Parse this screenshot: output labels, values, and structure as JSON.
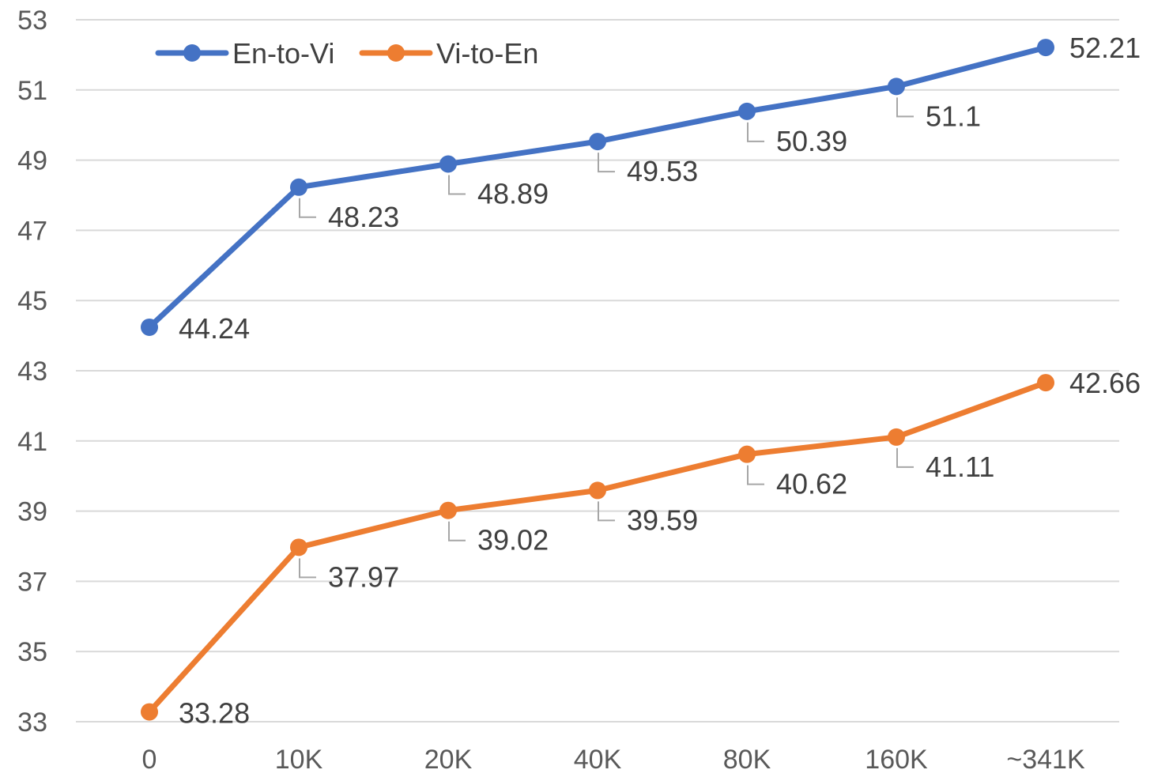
{
  "chart_data": {
    "type": "line",
    "title": "",
    "xlabel": "",
    "ylabel": "",
    "categories": [
      "0",
      "10K",
      "20K",
      "40K",
      "80K",
      "160K",
      "~341K"
    ],
    "ylim": [
      33,
      53
    ],
    "yticks": [
      33,
      35,
      37,
      39,
      41,
      43,
      45,
      47,
      49,
      51,
      53
    ],
    "grid": true,
    "legend_position": "top-left",
    "series": [
      {
        "name": "En-to-Vi",
        "color": "#4472C4",
        "values": [
          44.24,
          48.23,
          48.89,
          49.53,
          50.39,
          51.1,
          52.21
        ],
        "labels": [
          "44.24",
          "48.23",
          "48.89",
          "49.53",
          "50.39",
          "51.1",
          "52.21"
        ]
      },
      {
        "name": "Vi-to-En",
        "color": "#ED7D31",
        "values": [
          33.28,
          37.97,
          39.02,
          39.59,
          40.62,
          41.11,
          42.66
        ],
        "labels": [
          "33.28",
          "37.97",
          "39.02",
          "39.59",
          "40.62",
          "41.11",
          "42.66"
        ]
      }
    ]
  }
}
